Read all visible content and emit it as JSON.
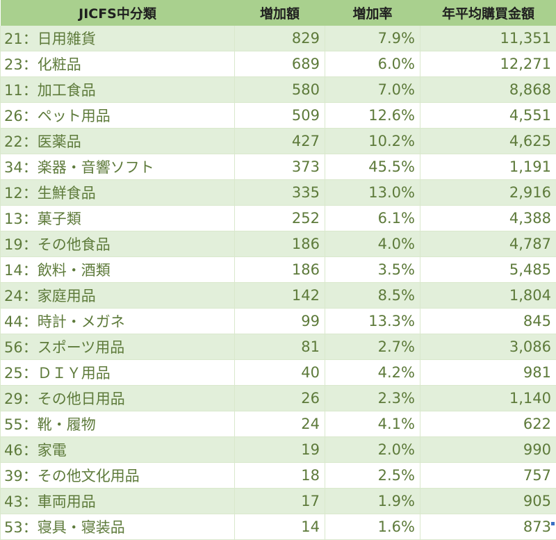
{
  "table": {
    "headers": [
      "JICFS中分類",
      "増加額",
      "増加率",
      "年平均購買金額"
    ],
    "rows": [
      [
        "21：日用雑貨",
        "829",
        "7.9%",
        "11,351"
      ],
      [
        "23：化粧品",
        "689",
        "6.0%",
        "12,271"
      ],
      [
        "11：加工食品",
        "580",
        "7.0%",
        "8,868"
      ],
      [
        "26：ペット用品",
        "509",
        "12.6%",
        "4,551"
      ],
      [
        "22：医薬品",
        "427",
        "10.2%",
        "4,625"
      ],
      [
        "34：楽器・音響ソフト",
        "373",
        "45.5%",
        "1,191"
      ],
      [
        "12：生鮮食品",
        "335",
        "13.0%",
        "2,916"
      ],
      [
        "13：菓子類",
        "252",
        "6.1%",
        "4,388"
      ],
      [
        "19：その他食品",
        "186",
        "4.0%",
        "4,787"
      ],
      [
        "14：飲料・酒類",
        "186",
        "3.5%",
        "5,485"
      ],
      [
        "24：家庭用品",
        "142",
        "8.5%",
        "1,804"
      ],
      [
        "44：時計・メガネ",
        "99",
        "13.3%",
        "845"
      ],
      [
        "56：スポーツ用品",
        "81",
        "2.7%",
        "3,086"
      ],
      [
        "25：ＤＩＹ用品",
        "40",
        "4.2%",
        "981"
      ],
      [
        "29：その他日用品",
        "26",
        "2.3%",
        "1,140"
      ],
      [
        "55：靴・履物",
        "24",
        "4.1%",
        "622"
      ],
      [
        "46：家電",
        "19",
        "2.0%",
        "990"
      ],
      [
        "39：その他文化用品",
        "18",
        "2.5%",
        "757"
      ],
      [
        "43：車両用品",
        "17",
        "1.9%",
        "905"
      ],
      [
        "53：寝具・寝装品",
        "14",
        "1.6%",
        "873"
      ]
    ]
  },
  "colors": {
    "header_bg": "#a9d08e",
    "band_bg": "#e2efda",
    "text": "#5d7a3a"
  }
}
